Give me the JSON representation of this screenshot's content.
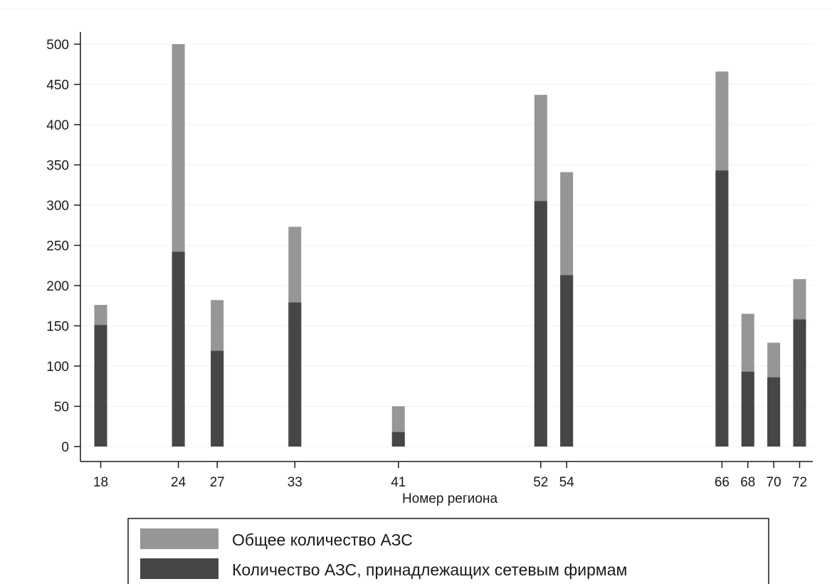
{
  "chart_data": {
    "type": "bar",
    "stacked": "overlay",
    "title": "",
    "xlabel": "Номер региона",
    "ylabel": "",
    "ylim": [
      0,
      520
    ],
    "yticks": [
      0,
      50,
      100,
      150,
      200,
      250,
      300,
      350,
      400,
      450,
      500
    ],
    "x_axis_numeric": true,
    "xlim": [
      16.5,
      73.5
    ],
    "categories": [
      "18",
      "24",
      "27",
      "33",
      "41",
      "52",
      "54",
      "66",
      "68",
      "70",
      "72"
    ],
    "x": [
      18,
      24,
      27,
      33,
      41,
      52,
      54,
      66,
      68,
      70,
      72
    ],
    "series": [
      {
        "name": "Общее количество АЗС",
        "color": "#969696",
        "values": [
          176,
          500,
          182,
          273,
          50,
          437,
          341,
          466,
          165,
          129,
          208
        ]
      },
      {
        "name": "Количество АЗС, принадлежащих сетевым фирмам",
        "color": "#464646",
        "values": [
          151,
          242,
          119,
          179,
          18,
          305,
          213,
          343,
          93,
          86,
          158
        ]
      }
    ],
    "grid": true,
    "legend_position": "bottom-center"
  }
}
